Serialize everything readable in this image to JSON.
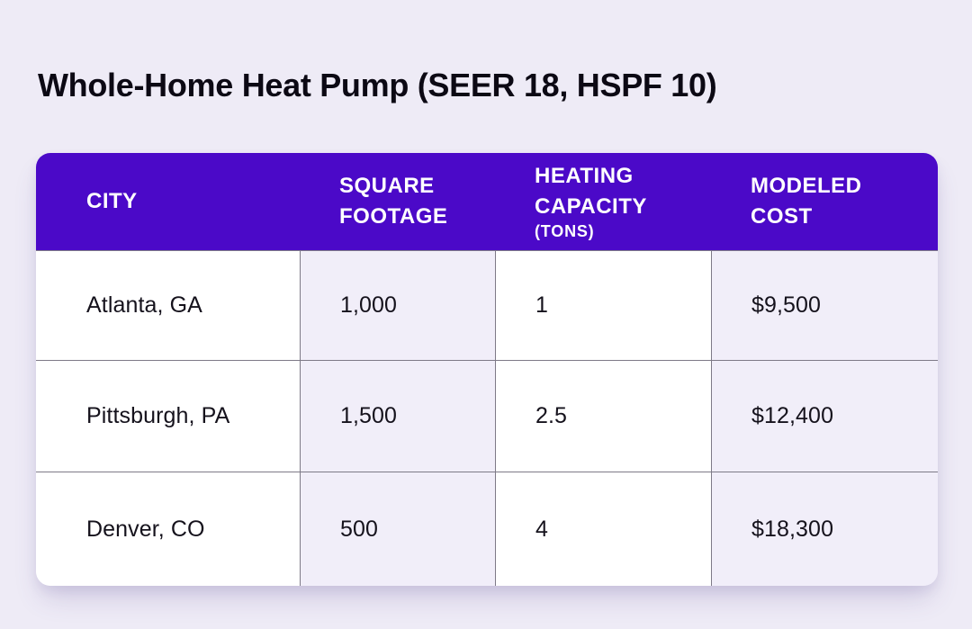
{
  "title": "Whole-Home Heat Pump (SEER 18, HSPF 10)",
  "theme": {
    "page_background": "#EEEBF6",
    "header_background": "#4B09C8",
    "header_text": "#FFFFFF",
    "stripe_cell_background": "#F1EEF9",
    "plain_cell_background": "#FFFFFF",
    "grid_line": "#7E7A87",
    "body_text": "#15121C"
  },
  "table": {
    "columns": [
      {
        "label": "CITY",
        "sub": ""
      },
      {
        "label": "SQUARE FOOTAGE",
        "sub": ""
      },
      {
        "label": "HEATING CAPACITY",
        "sub": "(TONS)"
      },
      {
        "label": "MODELED COST",
        "sub": ""
      }
    ],
    "rows": [
      {
        "city": "Atlanta, GA",
        "square_footage": "1,000",
        "heating_capacity_tons": "1",
        "modeled_cost": "$9,500"
      },
      {
        "city": "Pittsburgh, PA",
        "square_footage": "1,500",
        "heating_capacity_tons": "2.5",
        "modeled_cost": "$12,400"
      },
      {
        "city": "Denver, CO",
        "square_footage": "500",
        "heating_capacity_tons": "4",
        "modeled_cost": "$18,300"
      }
    ]
  },
  "chart_data": {
    "type": "table",
    "title": "Whole-Home Heat Pump (SEER 18, HSPF 10)",
    "columns": [
      "City",
      "Square Footage",
      "Heating Capacity (Tons)",
      "Modeled Cost"
    ],
    "rows": [
      [
        "Atlanta, GA",
        1000,
        1,
        9500
      ],
      [
        "Pittsburgh, PA",
        1500,
        2.5,
        12400
      ],
      [
        "Denver, CO",
        500,
        4,
        18300
      ]
    ]
  }
}
